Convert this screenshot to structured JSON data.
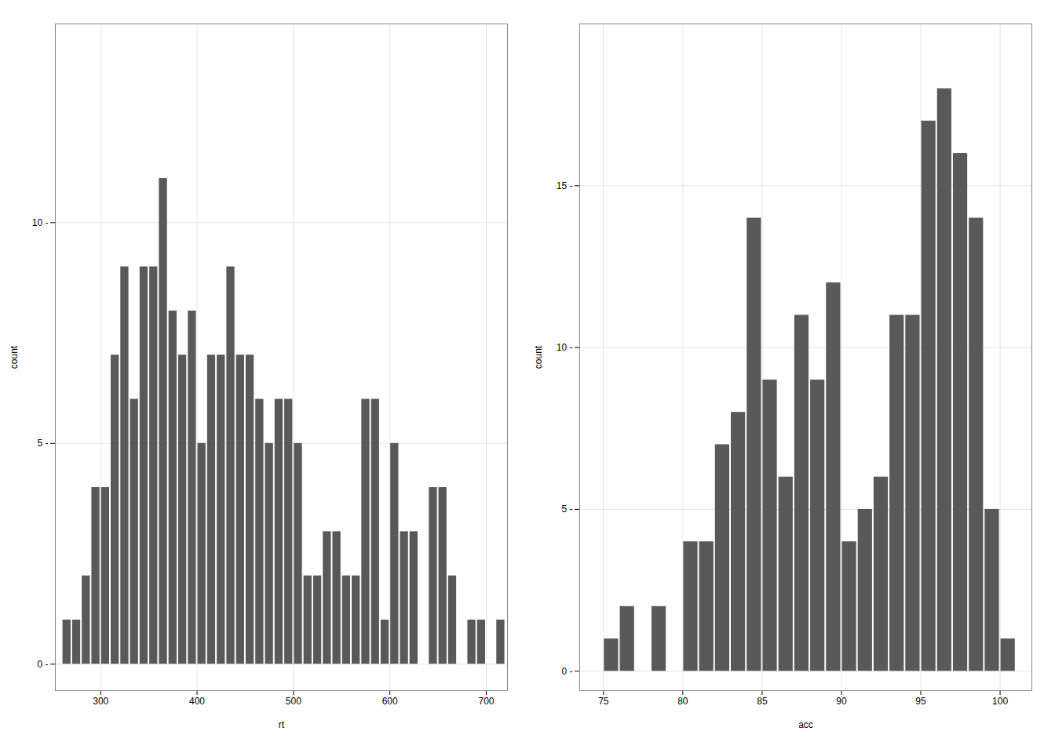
{
  "chart_data": [
    {
      "type": "histogram",
      "bins": [
        260,
        270,
        280,
        290,
        300,
        310,
        320,
        330,
        340,
        350,
        360,
        370,
        380,
        390,
        400,
        410,
        420,
        430,
        440,
        450,
        460,
        470,
        480,
        490,
        500,
        510,
        520,
        530,
        540,
        550,
        560,
        570,
        580,
        590,
        600,
        610,
        620,
        630,
        640,
        650,
        660,
        670,
        680,
        690,
        700,
        710,
        720
      ],
      "values": [
        1,
        1,
        2,
        4,
        4,
        7,
        9,
        6,
        9,
        9,
        11,
        8,
        7,
        8,
        5,
        7,
        7,
        9,
        7,
        7,
        6,
        5,
        6,
        6,
        5,
        2,
        2,
        3,
        3,
        2,
        2,
        6,
        6,
        1,
        5,
        3,
        3,
        0,
        4,
        4,
        2,
        0,
        1,
        1,
        0,
        1
      ],
      "color": "#595959",
      "x_label": "rt",
      "y_label": "count",
      "xlim": [
        253,
        722
      ],
      "ylim": [
        -0.6,
        14.5
      ],
      "xticks": [
        300,
        400,
        500,
        600,
        700
      ],
      "yticks": [
        {
          "value": 0,
          "label": "0 -"
        },
        {
          "value": 5,
          "label": "5 -"
        },
        {
          "value": 10,
          "label": "10 -"
        }
      ],
      "grid": true
    },
    {
      "type": "histogram",
      "bins": [
        75,
        76,
        77,
        78,
        79,
        80,
        81,
        82,
        83,
        84,
        85,
        86,
        87,
        88,
        89,
        90,
        91,
        92,
        93,
        94,
        95,
        96,
        97,
        98,
        99,
        100,
        101
      ],
      "values": [
        1,
        2,
        0,
        2,
        0,
        4,
        4,
        7,
        8,
        14,
        9,
        6,
        11,
        9,
        12,
        4,
        5,
        6,
        11,
        11,
        17,
        18,
        16,
        14,
        5,
        1
      ],
      "color": "#595959",
      "x_label": "acc",
      "y_label": "count",
      "xlim": [
        73.5,
        102
      ],
      "ylim": [
        -0.6,
        20
      ],
      "xticks": [
        75,
        80,
        85,
        90,
        95,
        100
      ],
      "yticks": [
        {
          "value": 0,
          "label": "0 -"
        },
        {
          "value": 5,
          "label": "5 -"
        },
        {
          "value": 10,
          "label": "10 -"
        },
        {
          "value": 15,
          "label": "15 -"
        }
      ],
      "grid": true
    }
  ]
}
